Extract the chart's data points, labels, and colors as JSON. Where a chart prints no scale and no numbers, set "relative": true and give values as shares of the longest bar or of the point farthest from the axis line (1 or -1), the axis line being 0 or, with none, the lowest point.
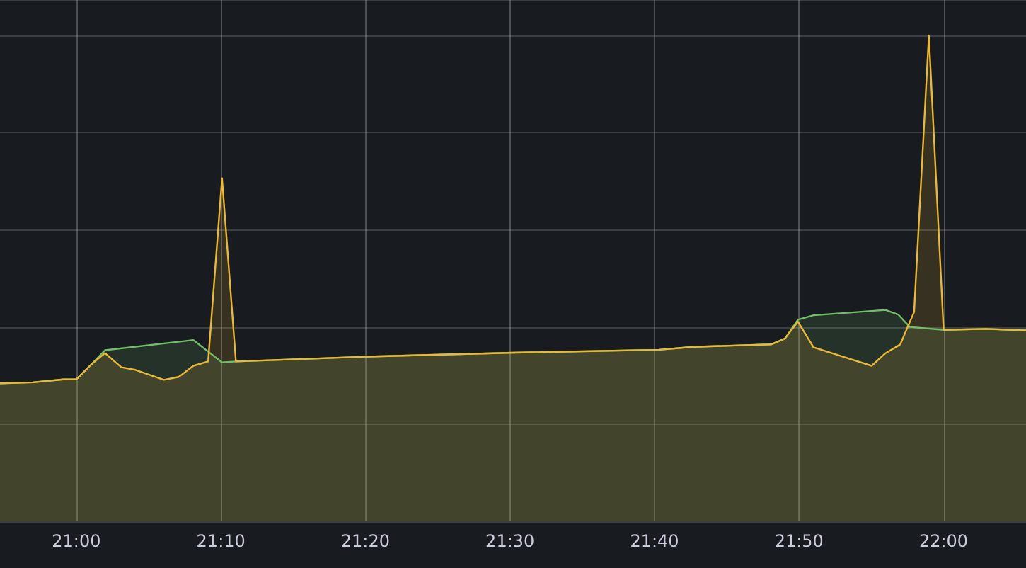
{
  "chart_data": {
    "type": "area",
    "relative": true,
    "grid": true,
    "tick_labels": "x",
    "xlim": [
      20.912,
      22.095
    ],
    "xticks": [
      {
        "value": 21,
        "label": "21:00"
      },
      {
        "value": 21.1667,
        "label": "21:10"
      },
      {
        "value": 21.3333,
        "label": "21:20"
      },
      {
        "value": 21.5,
        "label": "21:30"
      },
      {
        "value": 21.6667,
        "label": "21:40"
      },
      {
        "value": 21.8333,
        "label": "21:50"
      },
      {
        "value": 22,
        "label": "22:00"
      }
    ],
    "series": [
      {
        "color": "#73bf69",
        "x": [
          20.912,
          20.95,
          20.985,
          21,
          21.018,
          21.033,
          21.135,
          21.168,
          21.184,
          21.336,
          21.504,
          21.672,
          21.711,
          21.801,
          21.817,
          21.832,
          21.85,
          21.933,
          21.948,
          21.961,
          22,
          22.049,
          22.095
        ],
        "values": [
          0.284,
          0.286,
          0.292,
          0.292,
          0.324,
          0.352,
          0.373,
          0.327,
          0.329,
          0.339,
          0.347,
          0.353,
          0.359,
          0.364,
          0.376,
          0.415,
          0.424,
          0.435,
          0.425,
          0.4,
          0.394,
          0.396,
          0.393
        ]
      },
      {
        "color": "#eab839",
        "x": [
          20.912,
          20.95,
          20.985,
          21,
          21.018,
          21.033,
          21.052,
          21.067,
          21.101,
          21.118,
          21.135,
          21.152,
          21.168,
          21.184,
          21.336,
          21.504,
          21.672,
          21.711,
          21.801,
          21.817,
          21.832,
          21.85,
          21.917,
          21.933,
          21.95,
          21.966,
          21.983,
          22,
          22.049,
          22.095
        ],
        "values": [
          0.284,
          0.286,
          0.292,
          0.292,
          0.324,
          0.346,
          0.317,
          0.312,
          0.291,
          0.297,
          0.32,
          0.329,
          0.706,
          0.329,
          0.339,
          0.347,
          0.353,
          0.359,
          0.364,
          0.376,
          0.411,
          0.358,
          0.32,
          0.346,
          0.364,
          0.431,
          1,
          0.394,
          0.396,
          0.393
        ]
      }
    ]
  }
}
